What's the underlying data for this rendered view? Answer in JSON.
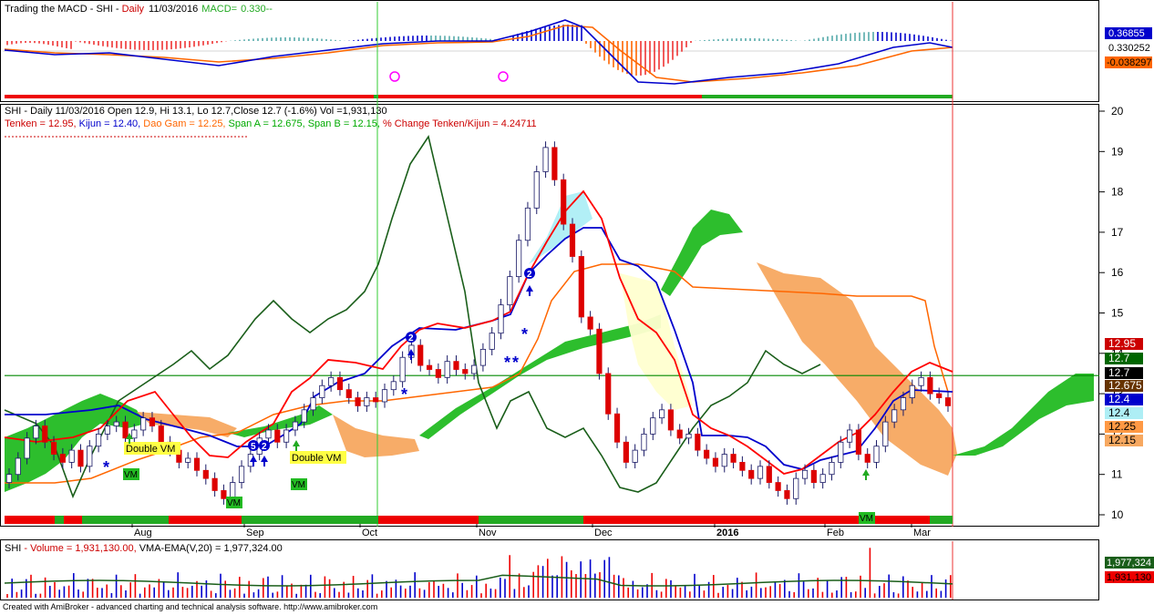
{
  "macd_panel": {
    "title_prefix": "Trading the MACD - SHI - ",
    "title_period": "Daily",
    "title_date": "11/03/2016",
    "title_macd_label": "MACD=",
    "title_macd_value": "0.330--",
    "price_labels": [
      "0.36855",
      "0.330252",
      "-0.038297"
    ],
    "price_label_colors": [
      "#0000cc",
      "#ffffff",
      "#ff6600"
    ]
  },
  "price_panel": {
    "line1": "SHI - Daily 11/03/2016 Open 12.9, Hi 13.1, Lo 12.7,Close 12.7 (-1.6%) Vol =1,931,130",
    "line2": {
      "tenken": "Tenken  = 12.95, ",
      "kijun": "Kijun = 12.40, ",
      "daogam": "Dao Gam = 12.25, ",
      "span": "Span A = 12.675, Span B = 12.15, ",
      "change": "% Change Tenken/Kijun = 4.24711"
    },
    "y_ticks": [
      "20",
      "19",
      "18",
      "17",
      "16",
      "15",
      "14",
      "13",
      "12",
      "11",
      "10"
    ],
    "x_labels": [
      "Aug",
      "Sep",
      "Oct",
      "Nov",
      "Dec",
      "2016",
      "Feb",
      "Mar"
    ],
    "annotations": [
      "Double VM",
      "Double VM",
      "VM",
      "VM",
      "VM",
      "VM"
    ],
    "right_labels": [
      "12.95",
      "12.7",
      "12.7",
      "12.675",
      "12.4",
      "12.4",
      "12.25",
      "12.15"
    ],
    "colors": {
      "tenken": "#ff0000",
      "kijun": "#0000cc",
      "daogam": "#ff6600",
      "span": "#00aa00",
      "change": "#cc0000",
      "cloud_bull": "#22bb22",
      "cloud_bear": "#f7a860",
      "chikou": "#1a5e1a"
    }
  },
  "volume_panel": {
    "label_prefix": "SHI",
    "label_volume": " - Volume = 1,931,130.00, ",
    "label_vma": "VMA-EMA(V,20) = 1,977,324.00",
    "right_labels": [
      "1,977,324",
      "1,931,130"
    ]
  },
  "footer": "Created with AmiBroker - advanced charting and technical analysis software. http://www.amibroker.com",
  "chart_data": {
    "type": "candlestick",
    "title": "SHI - Daily 11/03/2016",
    "ylim": [
      9.8,
      20.2
    ],
    "x_axis_months": [
      "Aug",
      "Sep",
      "Oct",
      "Nov",
      "Dec",
      "2016",
      "Feb",
      "Mar"
    ],
    "last_bar": {
      "date": "11/03/2016",
      "open": 12.9,
      "high": 13.1,
      "low": 12.7,
      "close": 12.7,
      "volume": 1931130
    },
    "price_close": [
      11.0,
      11.4,
      11.9,
      12.2,
      11.8,
      11.5,
      11.3,
      11.6,
      11.2,
      11.7,
      12.0,
      12.2,
      12.3,
      11.9,
      12.1,
      12.4,
      12.2,
      11.8,
      11.6,
      11.3,
      11.4,
      11.1,
      10.9,
      10.6,
      10.4,
      10.8,
      11.2,
      11.5,
      11.9,
      12.1,
      11.8,
      12.1,
      12.3,
      12.6,
      12.9,
      13.2,
      13.4,
      13.1,
      12.9,
      12.7,
      12.9,
      12.8,
      13.1,
      13.3,
      13.9,
      14.2,
      13.7,
      13.6,
      13.4,
      13.8,
      13.6,
      13.5,
      13.7,
      14.1,
      14.5,
      15.2,
      15.9,
      16.8,
      17.6,
      18.5,
      19.1,
      18.3,
      17.2,
      16.4,
      14.9,
      14.6,
      13.5,
      12.5,
      11.8,
      11.3,
      11.6,
      12.0,
      12.4,
      12.6,
      12.1,
      11.9,
      12.0,
      11.6,
      11.4,
      11.2,
      11.5,
      11.3,
      11.1,
      10.9,
      11.2,
      10.8,
      10.6,
      10.4,
      10.9,
      11.1,
      10.8,
      11.0,
      11.3,
      11.8,
      12.1,
      11.5,
      11.3,
      11.7,
      12.3,
      12.6,
      12.9,
      13.2,
      13.4,
      13.0,
      12.9,
      12.7
    ],
    "tenken": [
      11.8,
      11.7,
      11.9,
      12.2,
      12.2,
      12.0,
      11.7,
      11.5,
      11.4,
      11.6,
      12.0,
      12.2,
      12.3,
      12.3,
      12.1,
      12.0,
      11.8,
      11.6,
      11.2,
      11.0,
      10.9,
      11.0,
      11.2,
      11.4,
      11.5,
      11.7,
      11.9,
      12.0,
      12.3,
      12.6,
      12.8,
      12.9,
      13.0,
      13.1,
      13.3,
      13.6,
      13.7,
      13.6,
      13.6,
      13.7,
      13.8,
      14.0,
      14.5,
      15.2,
      16.0,
      16.6,
      17.3,
      17.6,
      17.4,
      16.8,
      16.0,
      15.3,
      14.4,
      13.6,
      12.9,
      12.5,
      12.2,
      12.1,
      12.0,
      11.8,
      11.6,
      11.4,
      11.3,
      11.4,
      11.5,
      11.3,
      11.2,
      11.1,
      11.0,
      10.9,
      10.9,
      11.0,
      11.4,
      11.8,
      12.0,
      12.2,
      12.4,
      12.7,
      13.1,
      13.3,
      13.3,
      13.1,
      13.0,
      12.95
    ],
    "kijun": [
      11.8,
      11.8,
      11.8,
      11.9,
      12.0,
      12.0,
      11.9,
      11.8,
      11.5,
      11.3,
      11.2,
      11.2,
      11.3,
      11.4,
      11.6,
      11.8,
      12.1,
      12.4,
      12.6,
      12.8,
      12.8,
      12.9,
      13.0,
      13.2,
      13.4,
      13.5,
      13.6,
      13.6,
      13.7,
      14.2,
      15.0,
      15.6,
      16.1,
      16.4,
      16.4,
      15.5,
      14.5,
      13.8,
      13.0,
      12.2,
      11.6,
      11.4,
      11.3,
      11.2,
      11.1,
      11.1,
      11.0,
      11.0,
      10.9,
      10.9,
      11.0,
      11.1,
      11.3,
      11.6,
      11.9,
      12.2,
      12.4,
      12.4,
      12.4
    ]
  }
}
